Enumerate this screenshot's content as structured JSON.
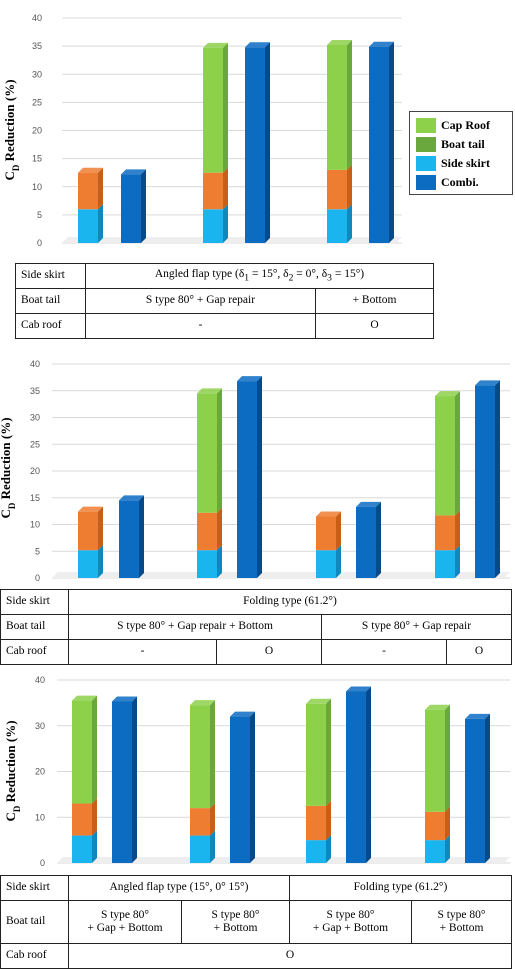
{
  "legend": [
    {
      "label": "Cap Roof",
      "color": "#8dd04a"
    },
    {
      "label": "Boat tail",
      "color": "#6aa83e"
    },
    {
      "label": "Side skirt",
      "color": "#1ab5ef"
    },
    {
      "label": "Combi.",
      "color": "#0b6cc2"
    }
  ],
  "colors": {
    "cap_roof": "#8dd04a",
    "cap_roof_side": "#6aa83e",
    "boat_tail": "#ee7d31",
    "boat_tail_side": "#c95f16",
    "side_skirt": "#1ab5ef",
    "side_skirt_side": "#0f88be",
    "combi": "#0b6cc2",
    "combi_side": "#074a8a"
  },
  "chart_data": [
    {
      "type": "bar",
      "stacked": true,
      "ylabel": "CD Reduction (%)",
      "ylim": [
        0,
        40
      ],
      "yticks": [
        0,
        5,
        10,
        15,
        20,
        25,
        30,
        35,
        40
      ],
      "groups": [
        {
          "side_skirt": 6,
          "boat_tail": 6.5,
          "cap_roof": 0,
          "combi": 12.2
        },
        {
          "side_skirt": 6,
          "boat_tail": 6.5,
          "cap_roof": 22.2,
          "combi": 34.8
        },
        {
          "side_skirt": 6,
          "boat_tail": 7,
          "cap_roof": 22.2,
          "combi": 34.9
        }
      ]
    },
    {
      "type": "bar",
      "stacked": true,
      "ylabel": "CD Reduction (%)",
      "ylim": [
        0,
        40
      ],
      "yticks": [
        0,
        5,
        10,
        15,
        20,
        25,
        30,
        35,
        40
      ],
      "groups": [
        {
          "side_skirt": 5.2,
          "boat_tail": 7.2,
          "cap_roof": 0,
          "combi": 14.5
        },
        {
          "side_skirt": 5.2,
          "boat_tail": 7,
          "cap_roof": 22.3,
          "combi": 36.8
        },
        {
          "side_skirt": 5.2,
          "boat_tail": 6.3,
          "cap_roof": 0,
          "combi": 13.3
        },
        {
          "side_skirt": 5.2,
          "boat_tail": 6.5,
          "cap_roof": 22.3,
          "combi": 36
        }
      ]
    },
    {
      "type": "bar",
      "stacked": true,
      "ylabel": "CD Reduction (%)",
      "ylim": [
        0,
        40
      ],
      "yticks": [
        0,
        10,
        20,
        30,
        40
      ],
      "groups": [
        {
          "side_skirt": 6,
          "boat_tail": 7,
          "cap_roof": 22.5,
          "combi": 35.3
        },
        {
          "side_skirt": 6,
          "boat_tail": 6,
          "cap_roof": 22.5,
          "combi": 32
        },
        {
          "side_skirt": 5,
          "boat_tail": 7.5,
          "cap_roof": 22.3,
          "combi": 37.5
        },
        {
          "side_skirt": 5,
          "boat_tail": 6.2,
          "cap_roof": 22.3,
          "combi": 31.5
        }
      ]
    }
  ],
  "tables": [
    {
      "side_skirt_label": "Side skirt",
      "side_skirt_value": "Angled flap type (δ1 = 15°, δ2 = 0°, δ3 = 15°)",
      "boat_tail_label": "Boat tail",
      "boat_tail_values": [
        "S type 80° + Gap repair",
        "+ Bottom"
      ],
      "cab_roof_label": "Cab roof",
      "cab_roof_values": [
        "-",
        "O"
      ]
    },
    {
      "side_skirt_label": "Side skirt",
      "side_skirt_value": "Folding type (61.2°)",
      "boat_tail_label": "Boat tail",
      "boat_tail_values": [
        "S type 80° + Gap repair + Bottom",
        "S type 80° + Gap repair"
      ],
      "cab_roof_label": "Cab roof",
      "cab_roof_values": [
        "-",
        "O",
        "-",
        "O"
      ]
    },
    {
      "side_skirt_label": "Side skirt",
      "side_skirt_values": [
        "Angled flap type (15°, 0° 15°)",
        "Folding type (61.2°)"
      ],
      "boat_tail_label": "Boat  tail",
      "boat_tail_values": [
        {
          "line1": "S type 80°",
          "line2": "+ Gap + Bottom"
        },
        {
          "line1": "S type 80°",
          "line2": "+ Bottom"
        },
        {
          "line1": "S type 80°",
          "line2": "+ Gap + Bottom"
        },
        {
          "line1": "S type 80°",
          "line2": "+ Bottom"
        }
      ],
      "cab_roof_label": "Cab roof",
      "cab_roof_value": "O"
    }
  ]
}
